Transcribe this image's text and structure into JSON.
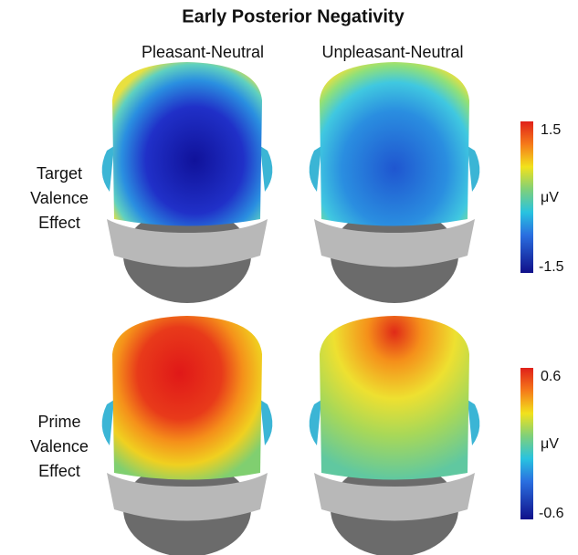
{
  "title": "Early Posterior Negativity",
  "columns": [
    "Pleasant-Neutral",
    "Unpleasant-Neutral"
  ],
  "rows": [
    {
      "label_lines": [
        "Target",
        "Valence",
        "Effect"
      ],
      "colorbar": {
        "max": "1.5",
        "unit": "μV",
        "min": "-1.5"
      }
    },
    {
      "label_lines": [
        "Prime",
        "Valence",
        "Effect"
      ],
      "colorbar": {
        "max": "0.6",
        "unit": "μV",
        "min": "-0.6"
      }
    }
  ]
}
